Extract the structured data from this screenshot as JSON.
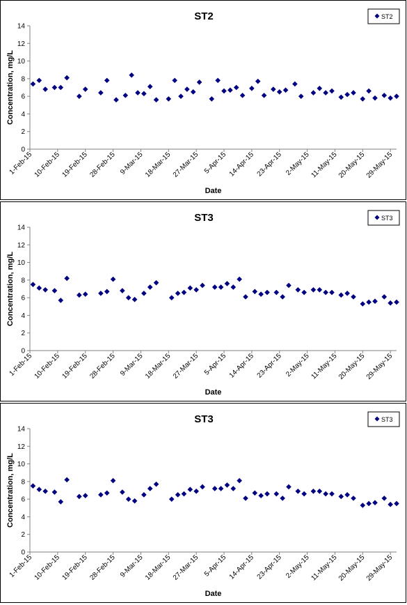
{
  "colors": {
    "marker": "#000080",
    "axis": "#808080",
    "text": "#000000"
  },
  "x_ticks": [
    "1-Feb-15",
    "10-Feb-15",
    "19-Feb-15",
    "28-Feb-15",
    "9-Mar-15",
    "18-Mar-15",
    "27-Mar-15",
    "5-Apr-15",
    "14-Apr-15",
    "23-Apr-15",
    "2-May-15",
    "11-May-15",
    "20-May-15",
    "29-May-15"
  ],
  "y_ticks": [
    "0",
    "2",
    "4",
    "6",
    "8",
    "10",
    "12",
    "14"
  ],
  "chart_data": [
    {
      "type": "scatter",
      "title": "ST2",
      "xlabel": "Date",
      "ylabel": "Concentration, mg/L",
      "ylim": [
        0,
        14
      ],
      "xlim": [
        "2015-02-01",
        "2015-05-31"
      ],
      "legend_position": "top-right",
      "grid": false,
      "series": [
        {
          "name": "ST2",
          "marker": "diamond",
          "x": [
            "2015-02-02",
            "2015-02-04",
            "2015-02-06",
            "2015-02-09",
            "2015-02-11",
            "2015-02-13",
            "2015-02-17",
            "2015-02-19",
            "2015-02-24",
            "2015-02-26",
            "2015-03-01",
            "2015-03-04",
            "2015-03-06",
            "2015-03-08",
            "2015-03-10",
            "2015-03-12",
            "2015-03-14",
            "2015-03-18",
            "2015-03-20",
            "2015-03-22",
            "2015-03-24",
            "2015-03-26",
            "2015-03-28",
            "2015-04-01",
            "2015-04-03",
            "2015-04-05",
            "2015-04-07",
            "2015-04-09",
            "2015-04-11",
            "2015-04-14",
            "2015-04-16",
            "2015-04-18",
            "2015-04-21",
            "2015-04-23",
            "2015-04-25",
            "2015-04-28",
            "2015-04-30",
            "2015-05-04",
            "2015-05-06",
            "2015-05-08",
            "2015-05-10",
            "2015-05-13",
            "2015-05-15",
            "2015-05-17",
            "2015-05-20",
            "2015-05-22",
            "2015-05-24",
            "2015-05-27",
            "2015-05-29",
            "2015-05-31"
          ],
          "y": [
            7.4,
            7.8,
            6.8,
            7.0,
            7.0,
            8.1,
            6.0,
            6.8,
            6.4,
            7.8,
            5.6,
            6.1,
            8.4,
            6.4,
            6.3,
            7.1,
            5.6,
            5.7,
            7.8,
            6.0,
            6.8,
            6.5,
            7.6,
            5.7,
            7.8,
            6.6,
            6.7,
            7.0,
            6.1,
            6.9,
            7.7,
            6.1,
            6.8,
            6.5,
            6.7,
            7.4,
            6.0,
            6.4,
            6.9,
            6.4,
            6.6,
            5.9,
            6.2,
            6.4,
            5.7,
            6.6,
            5.8,
            6.1,
            5.8,
            6.0
          ]
        }
      ]
    },
    {
      "type": "scatter",
      "title": "ST3",
      "xlabel": "Date",
      "ylabel": "Concentration, mg/L",
      "ylim": [
        0,
        14
      ],
      "xlim": [
        "2015-02-01",
        "2015-05-31"
      ],
      "legend_position": "top-right",
      "grid": false,
      "series": [
        {
          "name": "ST3",
          "marker": "diamond",
          "x": [
            "2015-02-02",
            "2015-02-04",
            "2015-02-06",
            "2015-02-09",
            "2015-02-11",
            "2015-02-13",
            "2015-02-17",
            "2015-02-19",
            "2015-02-24",
            "2015-02-26",
            "2015-02-28",
            "2015-03-03",
            "2015-03-05",
            "2015-03-07",
            "2015-03-10",
            "2015-03-12",
            "2015-03-14",
            "2015-03-19",
            "2015-03-21",
            "2015-03-23",
            "2015-03-25",
            "2015-03-27",
            "2015-03-29",
            "2015-04-02",
            "2015-04-04",
            "2015-04-06",
            "2015-04-08",
            "2015-04-10",
            "2015-04-12",
            "2015-04-15",
            "2015-04-17",
            "2015-04-19",
            "2015-04-22",
            "2015-04-24",
            "2015-04-26",
            "2015-04-29",
            "2015-05-01",
            "2015-05-04",
            "2015-05-06",
            "2015-05-08",
            "2015-05-10",
            "2015-05-13",
            "2015-05-15",
            "2015-05-17",
            "2015-05-20",
            "2015-05-22",
            "2015-05-24",
            "2015-05-27",
            "2015-05-29",
            "2015-05-31"
          ],
          "y": [
            7.5,
            7.1,
            6.9,
            6.8,
            5.7,
            8.2,
            6.3,
            6.4,
            6.5,
            6.7,
            8.1,
            6.8,
            6.0,
            5.8,
            6.5,
            7.2,
            7.7,
            6.0,
            6.5,
            6.6,
            7.1,
            6.9,
            7.4,
            7.2,
            7.2,
            7.6,
            7.2,
            8.1,
            6.1,
            6.7,
            6.4,
            6.6,
            6.6,
            6.1,
            7.4,
            6.9,
            6.6,
            6.9,
            6.9,
            6.6,
            6.6,
            6.3,
            6.5,
            6.1,
            5.3,
            5.5,
            5.6,
            6.1,
            5.4,
            5.5
          ]
        }
      ]
    },
    {
      "type": "scatter",
      "title": "ST3",
      "xlabel": "Date",
      "ylabel": "Concentration, mg/L",
      "ylim": [
        0,
        14
      ],
      "xlim": [
        "2015-02-01",
        "2015-05-31"
      ],
      "legend_position": "top-right",
      "grid": false,
      "series": [
        {
          "name": "ST3",
          "marker": "diamond",
          "x": [
            "2015-02-02",
            "2015-02-04",
            "2015-02-06",
            "2015-02-09",
            "2015-02-11",
            "2015-02-13",
            "2015-02-17",
            "2015-02-19",
            "2015-02-24",
            "2015-02-26",
            "2015-02-28",
            "2015-03-03",
            "2015-03-05",
            "2015-03-07",
            "2015-03-10",
            "2015-03-12",
            "2015-03-14",
            "2015-03-19",
            "2015-03-21",
            "2015-03-23",
            "2015-03-25",
            "2015-03-27",
            "2015-03-29",
            "2015-04-02",
            "2015-04-04",
            "2015-04-06",
            "2015-04-08",
            "2015-04-10",
            "2015-04-12",
            "2015-04-15",
            "2015-04-17",
            "2015-04-19",
            "2015-04-22",
            "2015-04-24",
            "2015-04-26",
            "2015-04-29",
            "2015-05-01",
            "2015-05-04",
            "2015-05-06",
            "2015-05-08",
            "2015-05-10",
            "2015-05-13",
            "2015-05-15",
            "2015-05-17",
            "2015-05-20",
            "2015-05-22",
            "2015-05-24",
            "2015-05-27",
            "2015-05-29",
            "2015-05-31"
          ],
          "y": [
            7.5,
            7.1,
            6.9,
            6.8,
            5.7,
            8.2,
            6.3,
            6.4,
            6.5,
            6.7,
            8.1,
            6.8,
            6.0,
            5.8,
            6.5,
            7.2,
            7.7,
            6.0,
            6.5,
            6.6,
            7.1,
            6.9,
            7.4,
            7.2,
            7.2,
            7.6,
            7.2,
            8.1,
            6.1,
            6.7,
            6.4,
            6.6,
            6.6,
            6.1,
            7.4,
            6.9,
            6.6,
            6.9,
            6.9,
            6.6,
            6.6,
            6.3,
            6.5,
            6.1,
            5.3,
            5.5,
            5.6,
            6.1,
            5.4,
            5.5
          ]
        }
      ]
    }
  ]
}
